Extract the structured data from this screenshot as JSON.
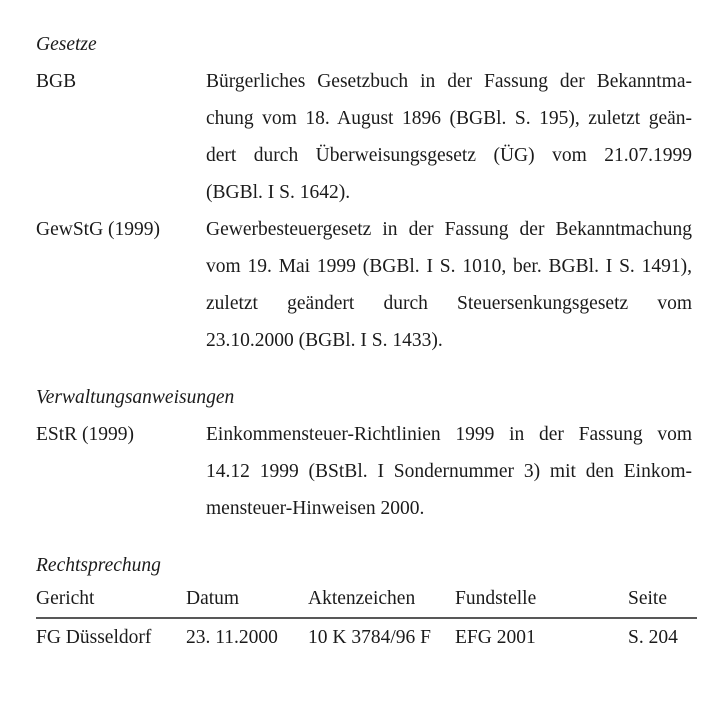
{
  "page": {
    "background_color": "#ffffff",
    "text_color": "#1b1b1b",
    "rule_color": "#585858"
  },
  "sections": [
    {
      "heading": "Gesetze",
      "entries": [
        {
          "label": "BGB",
          "lines": [
            "Bürgerliches Gesetzbuch in der Fassung der Bekanntma-",
            "chung vom 18. August 1896 (BGBl. S. 195), zuletzt geän-",
            "dert durch Überweisungsgesetz (ÜG) vom 21.07.1999",
            "(BGBl. I S. 1642)."
          ]
        },
        {
          "label": "GewStG (1999)",
          "lines": [
            "Gewerbesteuergesetz in der Fassung der Bekanntmachung",
            "vom 19. Mai 1999 (BGBl. I S. 1010, ber. BGBl. I S. 1491),",
            "zuletzt geändert durch Steuersenkungsgesetz vom",
            "23.10.2000 (BGBl. I S. 1433)."
          ]
        }
      ]
    },
    {
      "heading": "Verwaltungsanweisungen",
      "entries": [
        {
          "label": "EStR (1999)",
          "lines": [
            "Einkommensteuer-Richtlinien 1999 in der Fassung vom",
            "14.12 1999 (BStBl. I Sondernummer 3) mit den Einkom-",
            "mensteuer-Hinweisen 2000."
          ]
        }
      ]
    }
  ],
  "case_law": {
    "heading": "Rechtsprechung",
    "table": {
      "columns": [
        "Gericht",
        "Datum",
        "Aktenzeichen",
        "Fundstelle",
        "Seite"
      ],
      "rows": [
        [
          "FG Düsseldorf",
          "23. 11.2000",
          "10 K 3784/96 F",
          "EFG 2001",
          "S. 204"
        ]
      ]
    }
  }
}
